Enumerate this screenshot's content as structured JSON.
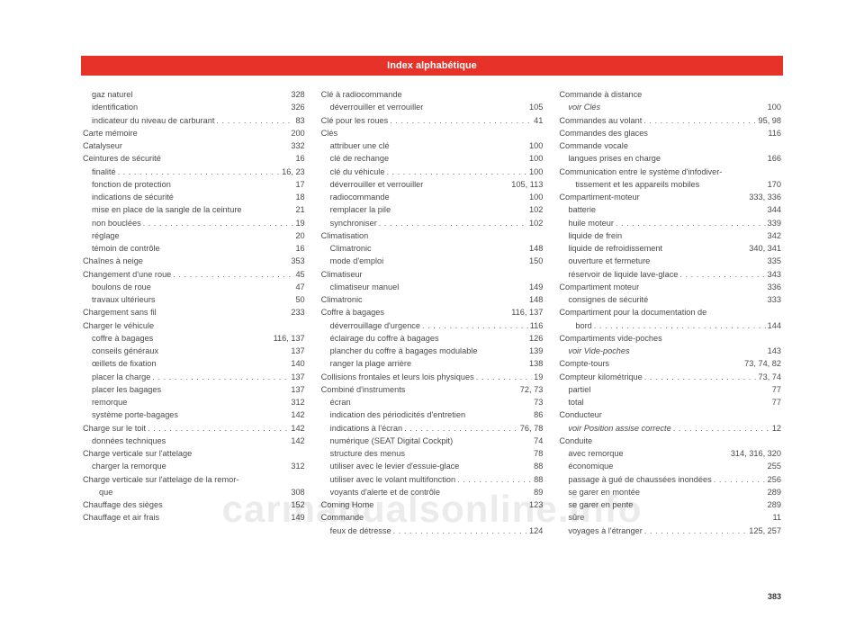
{
  "header": {
    "title": "Index alphabétique"
  },
  "page_number": "383",
  "watermark": "carmanualsonline.info",
  "columns": [
    [
      {
        "label": "gaz naturel",
        "page": "328",
        "indent": 1
      },
      {
        "label": "identification",
        "page": "326",
        "indent": 1
      },
      {
        "label": "indicateur du niveau de carburant",
        "page": "83",
        "indent": 1
      },
      {
        "label": "Carte mémoire",
        "page": "200",
        "indent": 0
      },
      {
        "label": "Catalyseur",
        "page": "332",
        "indent": 0
      },
      {
        "label": "Ceintures de sécurité",
        "page": "16",
        "indent": 0
      },
      {
        "label": "finalité",
        "page": "16, 23",
        "indent": 1
      },
      {
        "label": "fonction de protection",
        "page": "17",
        "indent": 1
      },
      {
        "label": "indications de sécurité",
        "page": "18",
        "indent": 1
      },
      {
        "label": "mise en place de la sangle de la ceinture",
        "page": "21",
        "indent": 1,
        "tight": true
      },
      {
        "label": "non bouclées",
        "page": "19",
        "indent": 1
      },
      {
        "label": "réglage",
        "page": "20",
        "indent": 1
      },
      {
        "label": "témoin de contrôle",
        "page": "16",
        "indent": 1
      },
      {
        "label": "Chaînes à neige",
        "page": "353",
        "indent": 0
      },
      {
        "label": "Changement d'une roue",
        "page": "45",
        "indent": 0
      },
      {
        "label": "boulons de roue",
        "page": "47",
        "indent": 1
      },
      {
        "label": "travaux ultérieurs",
        "page": "50",
        "indent": 1
      },
      {
        "label": "Chargement sans fil",
        "page": "233",
        "indent": 0
      },
      {
        "label": "Charger le véhicule",
        "page": "",
        "indent": 0,
        "noleader": true
      },
      {
        "label": "coffre à bagages",
        "page": "116, 137",
        "indent": 1
      },
      {
        "label": "conseils généraux",
        "page": "137",
        "indent": 1
      },
      {
        "label": "œillets de fixation",
        "page": "140",
        "indent": 1
      },
      {
        "label": "placer la charge",
        "page": "137",
        "indent": 1
      },
      {
        "label": "placer les bagages",
        "page": "137",
        "indent": 1
      },
      {
        "label": "remorque",
        "page": "312",
        "indent": 1
      },
      {
        "label": "système porte-bagages",
        "page": "142",
        "indent": 1
      },
      {
        "label": "Charge sur le toit",
        "page": "142",
        "indent": 0
      },
      {
        "label": "données techniques",
        "page": "142",
        "indent": 1
      },
      {
        "label": "Charge verticale sur l'attelage",
        "page": "",
        "indent": 0,
        "noleader": true
      },
      {
        "label": "charger la remorque",
        "page": "312",
        "indent": 1
      },
      {
        "label": "Charge verticale sur l'attelage de la remor-",
        "page": "",
        "indent": 0,
        "noleader": true
      },
      {
        "label": "que",
        "page": "308",
        "indent": 2
      },
      {
        "label": "Chauffage des sièges",
        "page": "152",
        "indent": 0
      },
      {
        "label": "Chauffage et air frais",
        "page": "149",
        "indent": 0
      }
    ],
    [
      {
        "label": "Clé à radiocommande",
        "page": "",
        "indent": 0,
        "noleader": true
      },
      {
        "label": "déverrouiller et verrouiller",
        "page": "105",
        "indent": 1
      },
      {
        "label": "Clé pour les roues",
        "page": "41",
        "indent": 0
      },
      {
        "label": "Clés",
        "page": "",
        "indent": 0,
        "noleader": true
      },
      {
        "label": "attribuer une clé",
        "page": "100",
        "indent": 1
      },
      {
        "label": "clé de rechange",
        "page": "100",
        "indent": 1
      },
      {
        "label": "clé du véhicule",
        "page": "100",
        "indent": 1
      },
      {
        "label": "déverrouiller et verrouiller",
        "page": "105, 113",
        "indent": 1
      },
      {
        "label": "radiocommande",
        "page": "100",
        "indent": 1
      },
      {
        "label": "remplacer la pile",
        "page": "102",
        "indent": 1
      },
      {
        "label": "synchroniser",
        "page": "102",
        "indent": 1
      },
      {
        "label": "Climatisation",
        "page": "",
        "indent": 0,
        "noleader": true
      },
      {
        "label": "Climatronic",
        "page": "148",
        "indent": 1
      },
      {
        "label": "mode d'emploi",
        "page": "150",
        "indent": 1
      },
      {
        "label": "Climatiseur",
        "page": "",
        "indent": 0,
        "noleader": true
      },
      {
        "label": "climatiseur manuel",
        "page": "149",
        "indent": 1
      },
      {
        "label": "Climatronic",
        "page": "148",
        "indent": 0
      },
      {
        "label": "Coffre à bagages",
        "page": "116, 137",
        "indent": 0
      },
      {
        "label": "déverrouillage d'urgence",
        "page": "116",
        "indent": 1
      },
      {
        "label": "éclairage du coffre à bagages",
        "page": "126",
        "indent": 1
      },
      {
        "label": "plancher du coffre à bagages modulable",
        "page": "139",
        "indent": 1,
        "tight": true
      },
      {
        "label": "ranger la plage arrière",
        "page": "138",
        "indent": 1
      },
      {
        "label": "Collisions frontales et leurs lois physiques",
        "page": "19",
        "indent": 0,
        "tight": true
      },
      {
        "label": "Combiné d'instruments",
        "page": "72, 73",
        "indent": 0
      },
      {
        "label": "écran",
        "page": "73",
        "indent": 1
      },
      {
        "label": "indication des périodicités d'entretien",
        "page": "86",
        "indent": 1
      },
      {
        "label": "indications à l'écran",
        "page": "76, 78",
        "indent": 1
      },
      {
        "label": "numérique (SEAT Digital Cockpit)",
        "page": "74",
        "indent": 1
      },
      {
        "label": "structure des menus",
        "page": "78",
        "indent": 1
      },
      {
        "label": "utiliser avec le levier d'essuie-glace",
        "page": "88",
        "indent": 1
      },
      {
        "label": "utiliser avec le volant multifonction",
        "page": "88",
        "indent": 1
      },
      {
        "label": "voyants d'alerte et de contrôle",
        "page": "89",
        "indent": 1
      },
      {
        "label": "Coming Home",
        "page": "123",
        "indent": 0
      },
      {
        "label": "Commande",
        "page": "",
        "indent": 0,
        "noleader": true
      },
      {
        "label": "feux de détresse",
        "page": "124",
        "indent": 1
      }
    ],
    [
      {
        "label": "Commande à distance",
        "page": "",
        "indent": 0,
        "noleader": true
      },
      {
        "label": "voir Clés",
        "page": "100",
        "indent": 1,
        "italic": true
      },
      {
        "label": "Commandes au volant",
        "page": "95, 98",
        "indent": 0
      },
      {
        "label": "Commandes des glaces",
        "page": "116",
        "indent": 0
      },
      {
        "label": "Commande vocale",
        "page": "",
        "indent": 0,
        "noleader": true
      },
      {
        "label": "langues prises en charge",
        "page": "166",
        "indent": 1
      },
      {
        "label": "Communication entre le système d'infodiver-",
        "page": "",
        "indent": 0,
        "noleader": true
      },
      {
        "label": "tissement et les appareils mobiles",
        "page": "170",
        "indent": 2
      },
      {
        "label": "Compartiment-moteur",
        "page": "333, 336",
        "indent": 0
      },
      {
        "label": "batterie",
        "page": "344",
        "indent": 1
      },
      {
        "label": "huile moteur",
        "page": "339",
        "indent": 1
      },
      {
        "label": "liquide de frein",
        "page": "342",
        "indent": 1
      },
      {
        "label": "liquide de refroidissement",
        "page": "340, 341",
        "indent": 1
      },
      {
        "label": "ouverture et fermeture",
        "page": "335",
        "indent": 1
      },
      {
        "label": "réservoir de liquide lave-glace",
        "page": "343",
        "indent": 1
      },
      {
        "label": "Compartiment moteur",
        "page": "336",
        "indent": 0
      },
      {
        "label": "consignes de sécurité",
        "page": "333",
        "indent": 1
      },
      {
        "label": "Compartiment pour la documentation de",
        "page": "",
        "indent": 0,
        "noleader": true
      },
      {
        "label": "bord",
        "page": "144",
        "indent": 2
      },
      {
        "label": "Compartiments vide-poches",
        "page": "",
        "indent": 0,
        "noleader": true
      },
      {
        "label": "voir Vide-poches",
        "page": "143",
        "indent": 1,
        "italic": true
      },
      {
        "label": "Compte-tours",
        "page": "73, 74, 82",
        "indent": 0
      },
      {
        "label": "Compteur kilométrique",
        "page": "73, 74",
        "indent": 0
      },
      {
        "label": "partiel",
        "page": "77",
        "indent": 1
      },
      {
        "label": "total",
        "page": "77",
        "indent": 1
      },
      {
        "label": "Conducteur",
        "page": "",
        "indent": 0,
        "noleader": true
      },
      {
        "label": "voir Position assise correcte",
        "page": "12",
        "indent": 1,
        "italic": true
      },
      {
        "label": "Conduite",
        "page": "",
        "indent": 0,
        "noleader": true
      },
      {
        "label": "avec remorque",
        "page": "314, 316, 320",
        "indent": 1
      },
      {
        "label": "économique",
        "page": "255",
        "indent": 1
      },
      {
        "label": "passage à gué de chaussées inondées",
        "page": "256",
        "indent": 1,
        "tight": true
      },
      {
        "label": "se garer en montée",
        "page": "289",
        "indent": 1
      },
      {
        "label": "se garer en pente",
        "page": "289",
        "indent": 1
      },
      {
        "label": "sûre",
        "page": "11",
        "indent": 1
      },
      {
        "label": "voyages à l'étranger",
        "page": "125, 257",
        "indent": 1
      }
    ]
  ]
}
